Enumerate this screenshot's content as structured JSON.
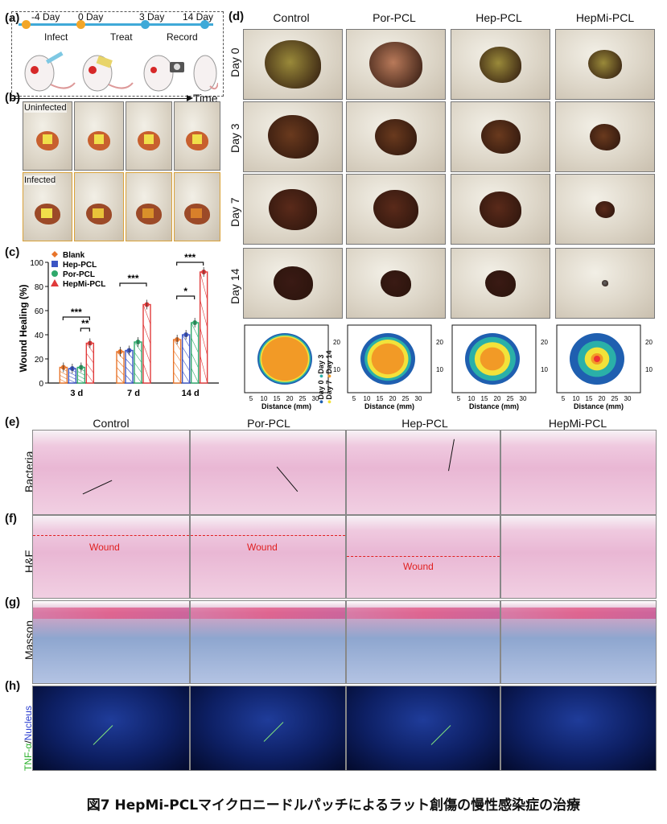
{
  "caption": "図7 HepMi-PCLマイクロニードルパッチによるラット創傷の慢性感染症の治療",
  "panels": {
    "a": "(a)",
    "b": "(b)",
    "c": "(c)",
    "d": "(d)",
    "e": "(e)",
    "f": "(f)",
    "g": "(g)",
    "h": "(h)"
  },
  "timeline": {
    "days": [
      "-4 Day",
      "0 Day",
      "3 Day",
      "14 Day"
    ],
    "steps": [
      "Infect",
      "Treat",
      "Record"
    ],
    "axis": "Time"
  },
  "panel_b": {
    "uninfected": "Uninfected",
    "infected": "Infected"
  },
  "panel_d": {
    "columns": [
      "Control",
      "Por-PCL",
      "Hep-PCL",
      "HepMi-PCL"
    ],
    "rows": [
      "Day 0",
      "Day 3",
      "Day 7",
      "Day 14"
    ],
    "xlabel": "Distance (mm)",
    "xticks": [
      "5",
      "10",
      "15",
      "20",
      "25",
      "30"
    ],
    "yticks": [
      "20",
      "10"
    ],
    "legend": [
      "Day 0",
      "Day 3",
      "Day 7",
      "Day 14"
    ]
  },
  "histology": {
    "columns": [
      "Control",
      "Por-PCL",
      "Hep-PCL",
      "HepMi-PCL"
    ],
    "rows": {
      "e": "Bacteria",
      "f": "H&E",
      "g": "Masson",
      "h_green": "TNF-α",
      "h_sep": "/",
      "h_blue": "Nucleus"
    },
    "wound_label": "Wound"
  },
  "colors": {
    "blank": "#e8742a",
    "hep": "#3b55c4",
    "por": "#2fa86b",
    "hepmi": "#e03a3a",
    "day0": "#1f5fb0",
    "day3": "#2ab0a8",
    "day7": "#f2e23a",
    "day14": "#f29a26"
  },
  "chart_data": {
    "type": "bar",
    "ylabel": "Wound Healing (%)",
    "categories": [
      "3 d",
      "7 d",
      "14 d"
    ],
    "ylim": [
      0,
      100
    ],
    "yticks": [
      0,
      20,
      40,
      60,
      80,
      100
    ],
    "series": [
      {
        "name": "Blank",
        "values": [
          13,
          26,
          36
        ]
      },
      {
        "name": "Hep-PCL",
        "values": [
          12,
          27,
          40
        ]
      },
      {
        "name": "Por-PCL",
        "values": [
          13,
          34,
          50
        ]
      },
      {
        "name": "HepMi-PCL",
        "values": [
          33,
          65,
          92
        ]
      }
    ],
    "significance": [
      {
        "label": "***"
      },
      {
        "label": "**"
      },
      {
        "label": "***"
      },
      {
        "label": "*"
      },
      {
        "label": "***"
      }
    ]
  }
}
